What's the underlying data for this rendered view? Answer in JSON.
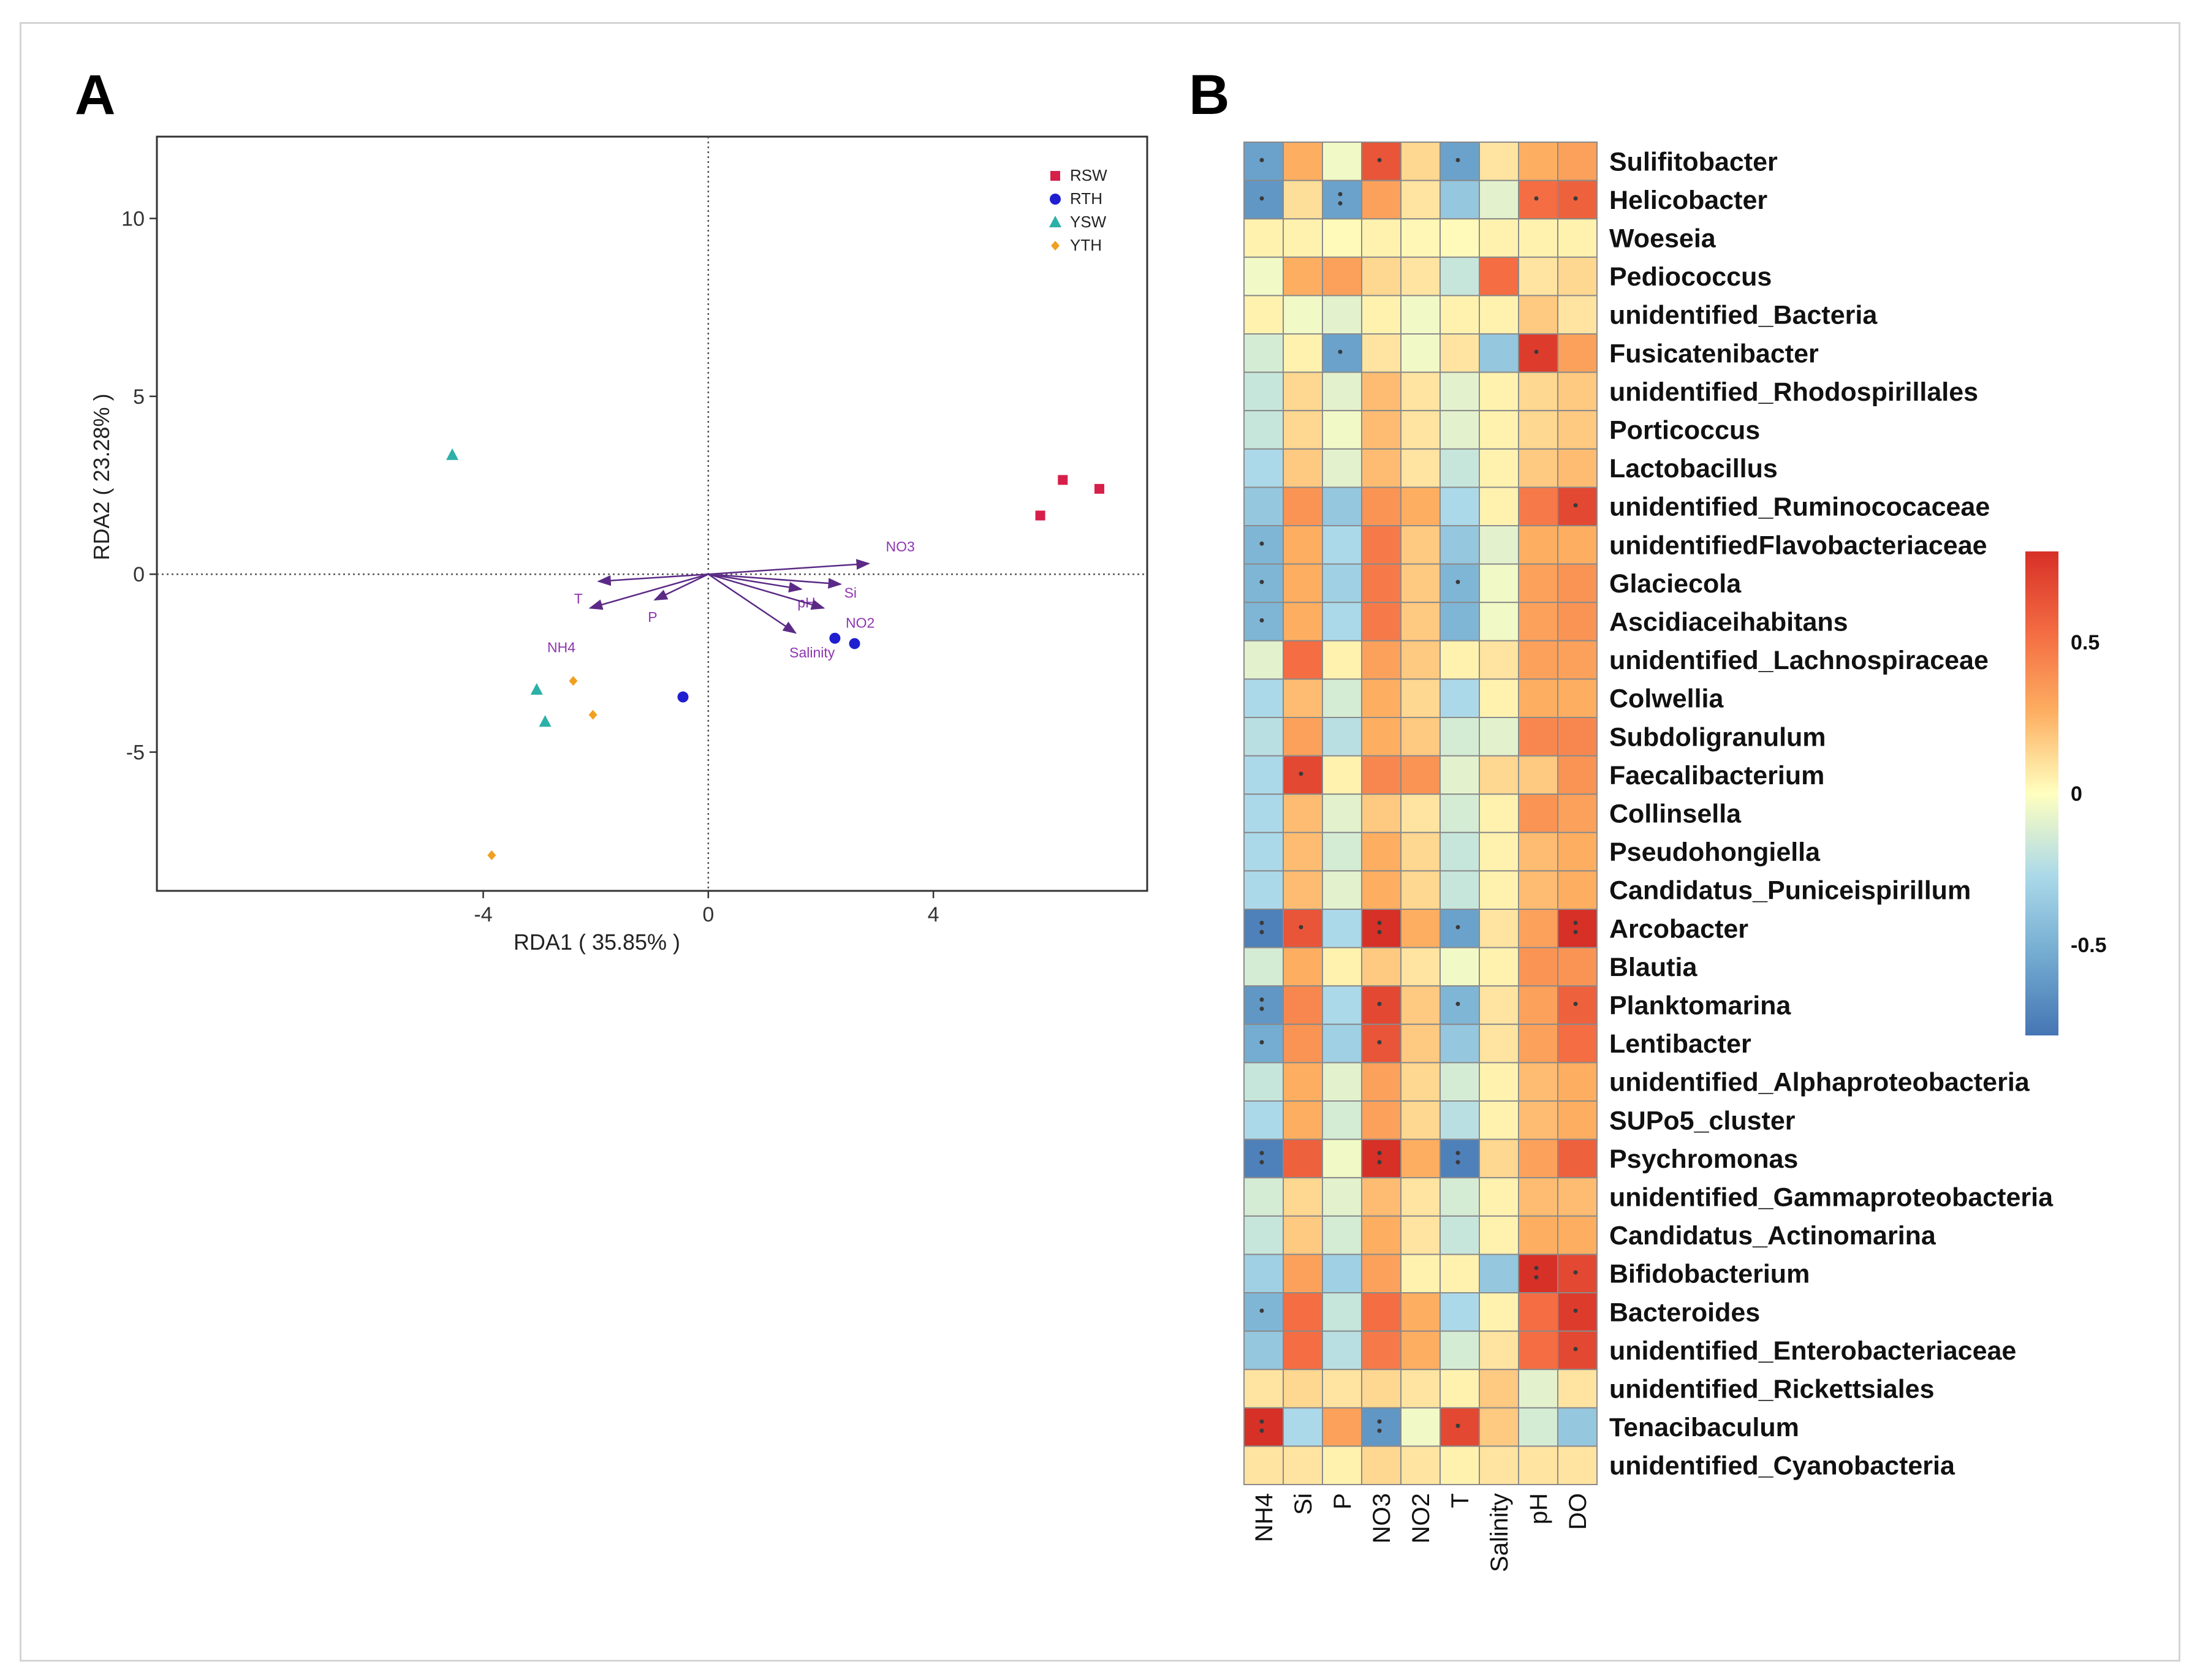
{
  "panels": {
    "a": "A",
    "b": "B"
  },
  "chart_data": [
    {
      "type": "scatter",
      "title": "",
      "xlabel": "RDA1 ( 35.85% )",
      "ylabel": "RDA2 ( 23.28% )",
      "xlim": [
        -9.8,
        7.8
      ],
      "ylim": [
        -8.9,
        12.3
      ],
      "xticks": [
        -4,
        0,
        4
      ],
      "xtick_labels": [
        "-4",
        "0",
        "4"
      ],
      "yticks": [
        10,
        5,
        0,
        -5
      ],
      "ytick_labels": [
        "10",
        "5",
        "0",
        "-5"
      ],
      "grid": false,
      "reference_lines": {
        "x": 0,
        "y": 0,
        "style": "dotted"
      },
      "legend_position": "top-right",
      "series": [
        {
          "name": "RSW",
          "marker": "square",
          "color": "#d6204a",
          "points": [
            [
              5.9,
              1.65
            ],
            [
              6.3,
              2.65
            ],
            [
              6.95,
              2.4
            ]
          ]
        },
        {
          "name": "RTH",
          "marker": "circle",
          "color": "#1f1fd0",
          "points": [
            [
              2.25,
              -1.8
            ],
            [
              2.6,
              -1.95
            ],
            [
              -0.45,
              -3.45
            ]
          ]
        },
        {
          "name": "YSW",
          "marker": "triangle",
          "color": "#2cb0a8",
          "points": [
            [
              -4.55,
              3.35
            ],
            [
              -3.05,
              -3.25
            ],
            [
              -2.9,
              -4.15
            ]
          ]
        },
        {
          "name": "YTH",
          "marker": "diamond",
          "color": "#f0a020",
          "points": [
            [
              -2.4,
              -3.0
            ],
            [
              -2.05,
              -3.95
            ],
            [
              -3.85,
              -7.9
            ]
          ]
        }
      ],
      "vectors": [
        {
          "name": "NO3",
          "x": 2.85,
          "y": 0.3
        },
        {
          "name": "Si",
          "x": 2.35,
          "y": -0.28
        },
        {
          "name": "pH",
          "x": 1.65,
          "y": -0.42
        },
        {
          "name": "NO2",
          "x": 2.05,
          "y": -0.95
        },
        {
          "name": "Salinity",
          "x": 1.55,
          "y": -1.65
        },
        {
          "name": "T",
          "x": -1.95,
          "y": -0.2
        },
        {
          "name": "P",
          "x": -0.95,
          "y": -0.72
        },
        {
          "name": "NH4",
          "x": -2.1,
          "y": -0.95
        }
      ]
    },
    {
      "type": "heatmap",
      "columns": [
        "NH4",
        "Si",
        "P",
        "NO3",
        "NO2",
        "T",
        "Salinity",
        "pH",
        "DO"
      ],
      "rows": [
        "Sulifitobacter",
        "Helicobacter",
        "Woeseia",
        "Pediococcus",
        "unidentified_Bacteria",
        "Fusicatenibacter",
        "unidentified_Rhodospirillales",
        "Porticoccus",
        "Lactobacillus",
        "unidentified_Ruminococaceae",
        "unidentifiedFlavobacteriaceae",
        "Glaciecola",
        "Ascidiaceihabitans",
        "unidentified_Lachnospiraceae",
        "Colwellia",
        "Subdoligranulum",
        "Faecalibacterium",
        "Collinsella",
        "Pseudohongiella",
        "Candidatus_Puniceispirillum",
        "Arcobacter",
        "Blautia",
        "Planktomarina",
        "Lentibacter",
        "unidentified_Alphaproteobacteria",
        "SUPo5_cluster",
        "Psychromonas",
        "unidentified_Gammaproteobacteria",
        "Candidatus_Actinomarina",
        "Bifidobacterium",
        "Bacteroides",
        "unidentified_Enterobacteriaceae",
        "unidentified_Rickettsiales",
        "Tenacibaculum",
        "unidentified_Cyanobacteria"
      ],
      "values": [
        [
          -0.6,
          0.3,
          -0.05,
          0.65,
          0.15,
          -0.6,
          0.1,
          0.3,
          0.35
        ],
        [
          -0.65,
          0.12,
          -0.6,
          0.35,
          0.1,
          -0.4,
          -0.1,
          0.55,
          0.6
        ],
        [
          0.05,
          0.05,
          0.02,
          0.05,
          0.03,
          0.02,
          0.05,
          0.05,
          0.05
        ],
        [
          -0.05,
          0.3,
          0.35,
          0.15,
          0.1,
          -0.2,
          0.55,
          0.1,
          0.15
        ],
        [
          0.05,
          -0.05,
          -0.1,
          0.05,
          -0.05,
          0.05,
          0.05,
          0.2,
          0.1
        ],
        [
          -0.15,
          0.05,
          -0.6,
          0.1,
          -0.05,
          0.1,
          -0.4,
          0.75,
          0.35
        ],
        [
          -0.2,
          0.15,
          -0.1,
          0.25,
          0.1,
          -0.1,
          0.05,
          0.15,
          0.2
        ],
        [
          -0.2,
          0.15,
          -0.05,
          0.25,
          0.1,
          -0.1,
          0.05,
          0.15,
          0.2
        ],
        [
          -0.3,
          0.2,
          -0.1,
          0.25,
          0.1,
          -0.2,
          0.05,
          0.2,
          0.25
        ],
        [
          -0.4,
          0.4,
          -0.4,
          0.4,
          0.3,
          -0.3,
          0.05,
          0.5,
          0.7
        ],
        [
          -0.5,
          0.3,
          -0.3,
          0.5,
          0.2,
          -0.4,
          -0.1,
          0.3,
          0.3
        ],
        [
          -0.5,
          0.3,
          -0.35,
          0.5,
          0.2,
          -0.5,
          -0.05,
          0.35,
          0.4
        ],
        [
          -0.5,
          0.3,
          -0.3,
          0.5,
          0.2,
          -0.5,
          -0.05,
          0.35,
          0.4
        ],
        [
          -0.1,
          0.55,
          0.05,
          0.35,
          0.2,
          0.05,
          0.1,
          0.35,
          0.35
        ],
        [
          -0.3,
          0.25,
          -0.15,
          0.3,
          0.15,
          -0.3,
          0.05,
          0.3,
          0.3
        ],
        [
          -0.25,
          0.35,
          -0.25,
          0.3,
          0.2,
          -0.15,
          -0.1,
          0.45,
          0.45
        ],
        [
          -0.3,
          0.7,
          0.05,
          0.45,
          0.4,
          -0.1,
          0.15,
          0.2,
          0.4
        ],
        [
          -0.3,
          0.25,
          -0.1,
          0.2,
          0.1,
          -0.15,
          0.05,
          0.4,
          0.35
        ],
        [
          -0.3,
          0.25,
          -0.15,
          0.3,
          0.15,
          -0.2,
          0.05,
          0.25,
          0.3
        ],
        [
          -0.3,
          0.25,
          -0.1,
          0.3,
          0.15,
          -0.2,
          0.05,
          0.25,
          0.3
        ],
        [
          -0.75,
          0.65,
          -0.3,
          0.8,
          0.3,
          -0.6,
          0.1,
          0.35,
          0.8
        ],
        [
          -0.15,
          0.3,
          0.05,
          0.2,
          0.1,
          -0.05,
          0.05,
          0.4,
          0.4
        ],
        [
          -0.65,
          0.45,
          -0.3,
          0.7,
          0.2,
          -0.5,
          0.1,
          0.35,
          0.6
        ],
        [
          -0.55,
          0.4,
          -0.35,
          0.65,
          0.2,
          -0.4,
          0.1,
          0.35,
          0.55
        ],
        [
          -0.2,
          0.3,
          -0.1,
          0.35,
          0.15,
          -0.15,
          0.05,
          0.25,
          0.3
        ],
        [
          -0.3,
          0.3,
          -0.15,
          0.35,
          0.15,
          -0.25,
          0.05,
          0.25,
          0.3
        ],
        [
          -0.75,
          0.6,
          -0.05,
          0.8,
          0.3,
          -0.75,
          0.15,
          0.35,
          0.6
        ],
        [
          -0.15,
          0.15,
          -0.1,
          0.25,
          0.1,
          -0.15,
          0.05,
          0.25,
          0.25
        ],
        [
          -0.2,
          0.2,
          -0.15,
          0.3,
          0.1,
          -0.2,
          0.05,
          0.3,
          0.3
        ],
        [
          -0.35,
          0.35,
          -0.35,
          0.35,
          0.05,
          0.05,
          -0.4,
          0.85,
          0.7
        ],
        [
          -0.5,
          0.55,
          -0.2,
          0.55,
          0.3,
          -0.3,
          0.05,
          0.55,
          0.75
        ],
        [
          -0.4,
          0.55,
          -0.25,
          0.5,
          0.3,
          -0.15,
          0.1,
          0.55,
          0.7
        ],
        [
          0.1,
          0.15,
          0.1,
          0.15,
          0.1,
          0.05,
          0.2,
          -0.1,
          0.1
        ],
        [
          0.85,
          -0.3,
          0.35,
          -0.65,
          -0.05,
          0.7,
          0.2,
          -0.15,
          -0.4
        ],
        [
          0.1,
          0.1,
          0.05,
          0.15,
          0.1,
          0.05,
          0.1,
          0.1,
          0.1
        ]
      ],
      "significance": {
        "0,0": "*",
        "0,3": "*",
        "0,5": "*",
        "1,0": "*",
        "1,2": "**",
        "1,7": "*",
        "1,8": "*",
        "5,2": "*",
        "5,7": "*",
        "9,8": "*",
        "10,0": "*",
        "11,0": "*",
        "11,5": "*",
        "12,0": "*",
        "16,1": "*",
        "20,0": "**",
        "20,1": "*",
        "20,3": "**",
        "20,5": "*",
        "20,8": "**",
        "22,0": "**",
        "22,3": "*",
        "22,5": "*",
        "22,8": "*",
        "23,0": "*",
        "23,3": "*",
        "26,0": "**",
        "26,3": "**",
        "26,5": "**",
        "29,7": "**",
        "29,8": "*",
        "30,0": "*",
        "30,8": "*",
        "31,8": "*",
        "33,0": "**",
        "33,3": "**",
        "33,5": "*"
      },
      "colorbar": {
        "range": [
          -0.8,
          0.8
        ],
        "ticks": [
          0.5,
          0,
          -0.5
        ],
        "tick_labels": [
          "0.5",
          "0",
          "-0.5"
        ]
      },
      "colors": {
        "low": "#4575b4",
        "mid": "#ffffbf",
        "high": "#d73027"
      }
    }
  ]
}
